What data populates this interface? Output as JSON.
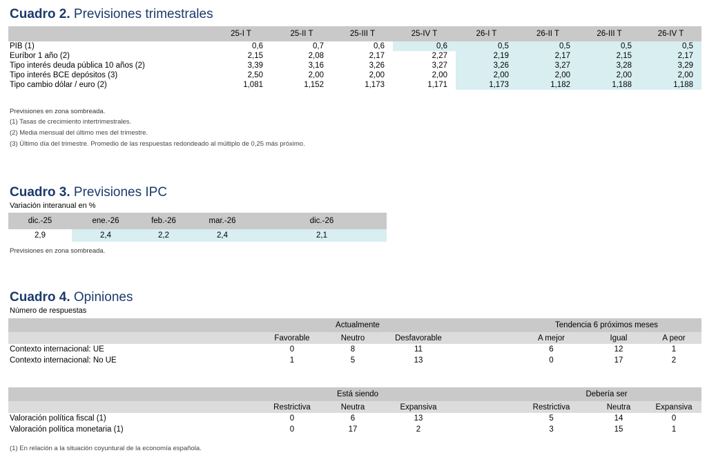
{
  "cuadro2": {
    "title_bold": "Cuadro 2.",
    "title_rest": " Previsiones trimestrales",
    "headers": [
      "25-I T",
      "25-II T",
      "25-III T",
      "25-IV T",
      "26-I T",
      "26-II T",
      "26-III T",
      "26-IV T"
    ],
    "rows": [
      {
        "label": "PIB (1)",
        "values": [
          "0,6",
          "0,7",
          "0,6",
          "0,6",
          "0,5",
          "0,5",
          "0,5",
          "0,5"
        ]
      },
      {
        "label": "Euríbor 1 año (2)",
        "values": [
          "2,15",
          "2,08",
          "2,17",
          "2,27",
          "2,19",
          "2,17",
          "2,15",
          "2,17"
        ]
      },
      {
        "label": "Tipo interés deuda pública 10 años (2)",
        "values": [
          "3,39",
          "3,16",
          "3,26",
          "3,27",
          "3,26",
          "3,27",
          "3,28",
          "3,29"
        ]
      },
      {
        "label": "Tipo interés BCE depósitos (3)",
        "values": [
          "2,50",
          "2,00",
          "2,00",
          "2,00",
          "2,00",
          "2,00",
          "2,00",
          "2,00"
        ]
      },
      {
        "label": "Tipo cambio dólar / euro (2)",
        "values": [
          "1,081",
          "1,152",
          "1,173",
          "1,171",
          "1,173",
          "1,182",
          "1,188",
          "1,188"
        ]
      }
    ],
    "notes": [
      "Previsiones en zona sombreada.",
      "(1) Tasas de crecimiento intertrimestrales.",
      "(2) Media mensual del último mes del trimestre.",
      "(3) Último día del trimestre. Promedio de las respuestas redondeado al múltiplo de 0,25 más próximo."
    ]
  },
  "cuadro3": {
    "title_bold": "Cuadro 3.",
    "title_rest": " Previsiones IPC",
    "subtitle": "Variación interanual en %",
    "headers": [
      "dic.-25",
      "ene.-26",
      "feb.-26",
      "mar.-26",
      "dic.-26"
    ],
    "values": [
      "2,9",
      "2,4",
      "2,2",
      "2,4",
      "2,1"
    ],
    "note": "Previsiones en zona sombreada."
  },
  "cuadro4": {
    "title_bold": "Cuadro 4.",
    "title_rest": " Opiniones",
    "subtitle": "Número de respuestas",
    "block1": {
      "group_left": "Actualmente",
      "group_right": "Tendencia 6 próximos meses",
      "cols_left": [
        "Favorable",
        "Neutro",
        "Desfavorable"
      ],
      "cols_right": [
        "A mejor",
        "Igual",
        "A peor"
      ],
      "rows": [
        {
          "label": "Contexto internacional:  UE",
          "left": [
            "0",
            "8",
            "11"
          ],
          "right": [
            "6",
            "12",
            "1"
          ]
        },
        {
          "label": "Contexto internacional: No UE",
          "left": [
            "1",
            "5",
            "13"
          ],
          "right": [
            "0",
            "17",
            "2"
          ]
        }
      ]
    },
    "block2": {
      "group_left": "Está siendo",
      "group_right": "Debería ser",
      "cols_left": [
        "Restrictiva",
        "Neutra",
        "Expansiva"
      ],
      "cols_right": [
        "Restrictiva",
        "Neutra",
        "Expansiva"
      ],
      "rows": [
        {
          "label": "Valoración política fiscal (1)",
          "left": [
            "0",
            "6",
            "13"
          ],
          "right": [
            "5",
            "14",
            "0"
          ]
        },
        {
          "label": "Valoración política monetaria (1)",
          "left": [
            "0",
            "17",
            "2"
          ],
          "right": [
            "3",
            "15",
            "1"
          ]
        }
      ]
    },
    "note": "(1) En relación a la situación coyuntural de la economía española."
  }
}
